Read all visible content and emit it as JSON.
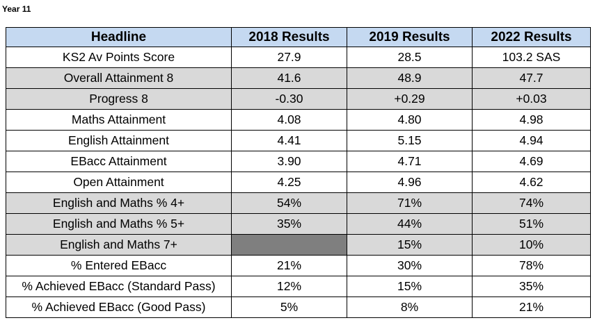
{
  "page": {
    "title": "Year 11"
  },
  "table": {
    "headers": [
      "Headline",
      "2018 Results",
      "2019 Results",
      "2022 Results"
    ],
    "rows": [
      {
        "label": "KS2 Av Points Score",
        "values": [
          "27.9",
          "28.5",
          "103.2 SAS"
        ],
        "shaded": false
      },
      {
        "label": "Overall Attainment 8",
        "values": [
          "41.6",
          "48.9",
          "47.7"
        ],
        "shaded": true
      },
      {
        "label": "Progress 8",
        "values": [
          "-0.30",
          "+0.29",
          "+0.03"
        ],
        "shaded": true
      },
      {
        "label": "Maths Attainment",
        "values": [
          "4.08",
          "4.80",
          "4.98"
        ],
        "shaded": false
      },
      {
        "label": "English Attainment",
        "values": [
          "4.41",
          "5.15",
          "4.94"
        ],
        "shaded": false
      },
      {
        "label": "EBacc Attainment",
        "values": [
          "3.90",
          "4.71",
          "4.69"
        ],
        "shaded": false
      },
      {
        "label": "Open Attainment",
        "values": [
          "4.25",
          "4.96",
          "4.62"
        ],
        "shaded": false
      },
      {
        "label": "English and Maths % 4+",
        "values": [
          "54%",
          "71%",
          "74%"
        ],
        "shaded": true
      },
      {
        "label": "English and Maths % 5+",
        "values": [
          "35%",
          "44%",
          "51%"
        ],
        "shaded": true
      },
      {
        "label": "English and Maths 7+",
        "values": [
          "",
          "15%",
          "10%"
        ],
        "shaded": true,
        "blank_first_value": true
      },
      {
        "label": "% Entered EBacc",
        "values": [
          "21%",
          "30%",
          "78%"
        ],
        "shaded": false
      },
      {
        "label": "% Achieved EBacc (Standard Pass)",
        "values": [
          "12%",
          "15%",
          "35%"
        ],
        "shaded": false
      },
      {
        "label": "% Achieved EBacc (Good Pass)",
        "values": [
          "5%",
          "8%",
          "21%"
        ],
        "shaded": false
      }
    ]
  }
}
